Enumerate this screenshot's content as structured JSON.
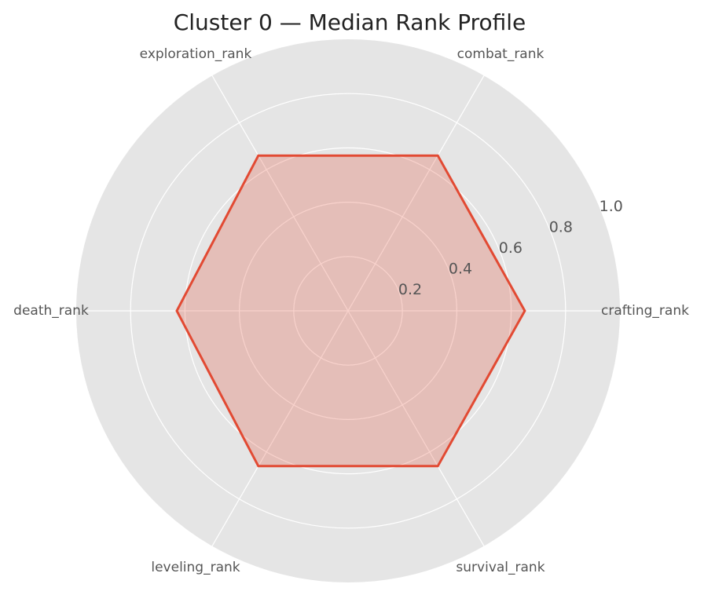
{
  "chart_data": {
    "type": "radar",
    "title": "Cluster 0 — Median Rank Profile",
    "categories": [
      "crafting_rank",
      "combat_rank",
      "exploration_rank",
      "death_rank",
      "leveling_rank",
      "survival_rank"
    ],
    "series": [
      {
        "values": [
          0.65,
          0.66,
          0.66,
          0.63,
          0.66,
          0.66
        ],
        "color": "#E24A33"
      }
    ],
    "rlim": [
      0,
      1.0
    ],
    "rticks": [
      0.2,
      0.4,
      0.6,
      0.8,
      1.0
    ],
    "rtick_labels": [
      "0.2",
      "0.4",
      "0.6",
      "0.8",
      "1.0"
    ],
    "grid": true,
    "background_color": "#E5E5E5",
    "grid_color": "#FFFFFF"
  }
}
